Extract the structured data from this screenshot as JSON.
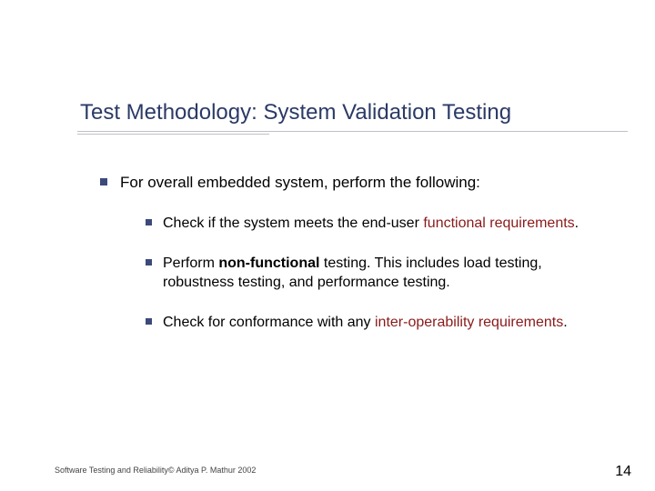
{
  "title": "Test Methodology: System Validation Testing",
  "intro": "For overall embedded system, perform the following:",
  "items": [
    {
      "pre": "Check if the system meets the end-user ",
      "hl": "functional requirements",
      "post": "."
    },
    {
      "pre": "Perform ",
      "bold": "non-functional",
      "post": " testing. This includes load testing, robustness testing, and performance testing."
    },
    {
      "pre": "Check for conformance with any ",
      "hl": "inter-operability requirements",
      "post": "."
    }
  ],
  "footer_left": "Software Testing and Reliability© Aditya P. Mathur 2002",
  "page_number": "14",
  "colors": {
    "title": "#2b3a66",
    "bullet": "#3b4a7a",
    "highlight": "#8a1a1a",
    "underline": "#c0c0c8",
    "background": "#ffffff"
  },
  "fonts": {
    "title_size_pt": 24,
    "body_size_pt": 17,
    "sub_size_pt": 16,
    "footer_size_pt": 9,
    "family": "Verdana"
  }
}
